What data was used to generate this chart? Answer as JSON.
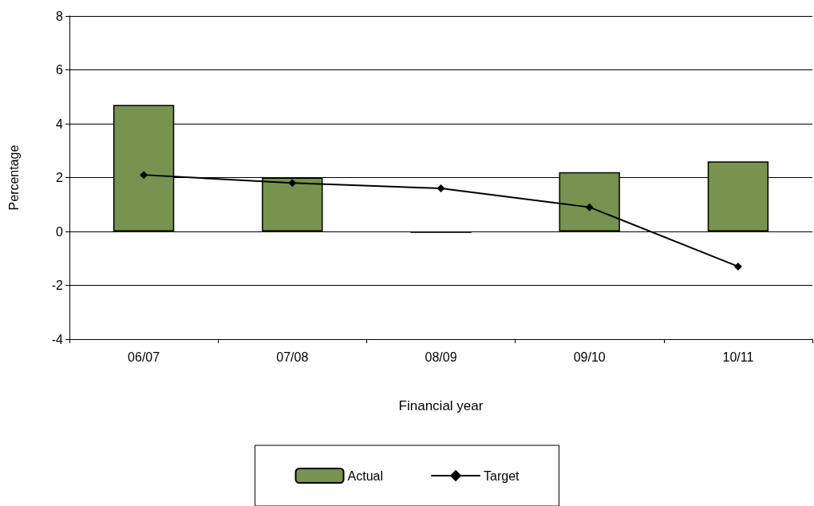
{
  "chart_data": {
    "type": "bar",
    "xlabel": "Financial year",
    "ylabel": "Percentage",
    "categories": [
      "06/07",
      "07/08",
      "08/09",
      "09/10",
      "10/11"
    ],
    "series": [
      {
        "name": "Actual",
        "color": "#77934f",
        "values": [
          4.7,
          2.0,
          -0.05,
          2.2,
          2.6
        ]
      },
      {
        "name": "Target",
        "type": "line",
        "color": "#000000",
        "marker": "diamond",
        "values": [
          2.1,
          1.8,
          1.6,
          0.9,
          -1.3
        ]
      }
    ],
    "ylim": [
      -4,
      8
    ],
    "yticks": [
      -4,
      -2,
      0,
      2,
      4,
      6,
      8
    ],
    "grid": "y",
    "legend": "bottom"
  }
}
